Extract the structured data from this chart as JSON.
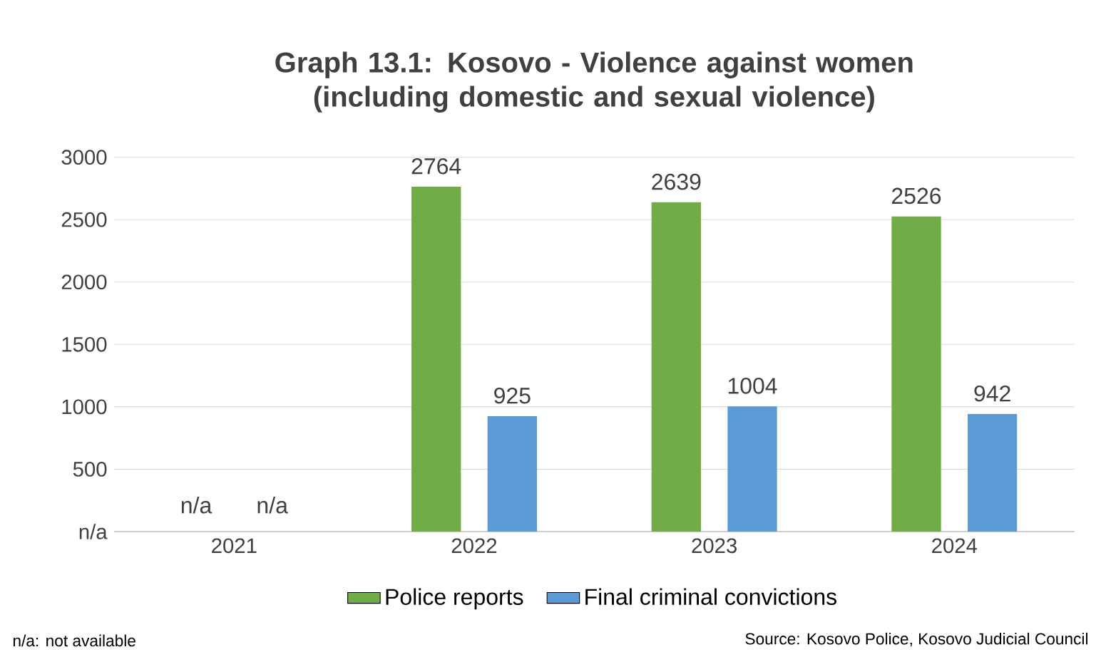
{
  "chart_data": {
    "type": "bar",
    "title": "Graph 13.1: Kosovo - Violence against women (including domestic and sexual violence)",
    "categories": [
      "2021",
      "2022",
      "2023",
      "2024"
    ],
    "series": [
      {
        "name": "Police reports",
        "color": "#70ad47",
        "values": [
          null,
          2764,
          2639,
          2526
        ],
        "value_labels": [
          "n/a",
          "2764",
          "2639",
          "2526"
        ]
      },
      {
        "name": "Final criminal convictions",
        "color": "#5b9bd5",
        "values": [
          null,
          925,
          1004,
          942
        ],
        "value_labels": [
          "n/a",
          "925",
          "1004",
          "942"
        ]
      }
    ],
    "ylim": [
      0,
      3000
    ],
    "yticks": [
      {
        "value": 0,
        "label": "n/a"
      },
      500,
      1000,
      1500,
      2000,
      2500,
      3000
    ],
    "grid": "y",
    "legend": "bottom",
    "annotations": [
      "n/a: not available",
      "Source: Kosovo Police, Kosovo Judicial Council"
    ]
  }
}
